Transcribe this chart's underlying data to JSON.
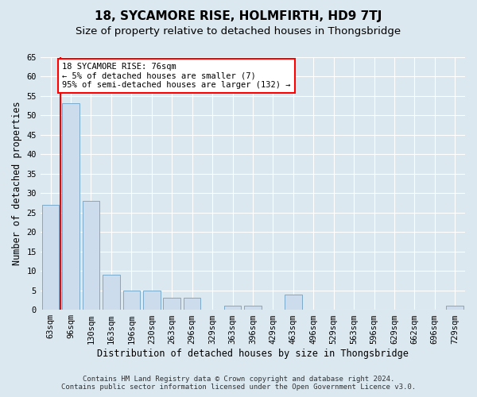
{
  "title": "18, SYCAMORE RISE, HOLMFIRTH, HD9 7TJ",
  "subtitle": "Size of property relative to detached houses in Thongsbridge",
  "xlabel": "Distribution of detached houses by size in Thongsbridge",
  "ylabel": "Number of detached properties",
  "footer_line1": "Contains HM Land Registry data © Crown copyright and database right 2024.",
  "footer_line2": "Contains public sector information licensed under the Open Government Licence v3.0.",
  "categories": [
    "63sqm",
    "96sqm",
    "130sqm",
    "163sqm",
    "196sqm",
    "230sqm",
    "263sqm",
    "296sqm",
    "329sqm",
    "363sqm",
    "396sqm",
    "429sqm",
    "463sqm",
    "496sqm",
    "529sqm",
    "563sqm",
    "596sqm",
    "629sqm",
    "662sqm",
    "696sqm",
    "729sqm"
  ],
  "values": [
    27,
    53,
    28,
    9,
    5,
    5,
    3,
    3,
    0,
    1,
    1,
    0,
    4,
    0,
    0,
    0,
    0,
    0,
    0,
    0,
    1
  ],
  "bar_color": "#ccdcec",
  "bar_edge_color": "#7aaaca",
  "annotation_text": "18 SYCAMORE RISE: 76sqm\n← 5% of detached houses are smaller (7)\n95% of semi-detached houses are larger (132) →",
  "annotation_box_color": "white",
  "annotation_box_edge_color": "red",
  "ylim": [
    0,
    65
  ],
  "yticks": [
    0,
    5,
    10,
    15,
    20,
    25,
    30,
    35,
    40,
    45,
    50,
    55,
    60,
    65
  ],
  "bg_color": "#dce8f0",
  "plot_bg_color": "#dce8f0",
  "grid_color": "white",
  "title_fontsize": 11,
  "subtitle_fontsize": 9.5,
  "axis_label_fontsize": 8.5,
  "tick_fontsize": 7.5,
  "annotation_fontsize": 7.5,
  "footer_fontsize": 6.5
}
